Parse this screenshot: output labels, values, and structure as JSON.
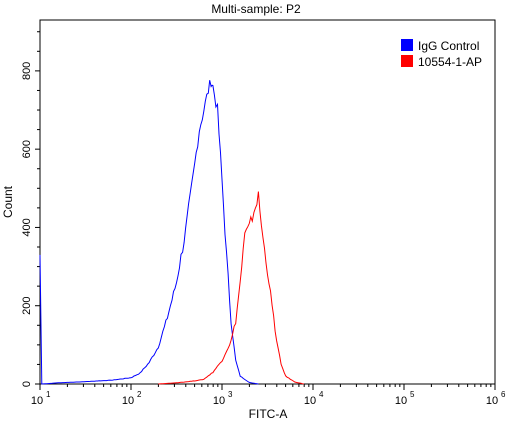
{
  "chart_data": {
    "type": "line",
    "title": "Multi-sample: P2",
    "xlabel": "FITC-A",
    "ylabel": "Count",
    "x_scale": "log",
    "xlim_exp": [
      1,
      6
    ],
    "ylim": [
      0,
      930
    ],
    "y_ticks": [
      0,
      200,
      400,
      600,
      800
    ],
    "x_tick_bases": [
      "10",
      "10",
      "10",
      "10",
      "10",
      "10"
    ],
    "x_tick_exps": [
      "1",
      "2",
      "3",
      "4",
      "5",
      "6"
    ],
    "legend_position": "top-right",
    "series": [
      {
        "name": "IgG Control",
        "color": "#0000ff",
        "points": [
          [
            1.0,
            330
          ],
          [
            1.02,
            0
          ],
          [
            1.2,
            3
          ],
          [
            1.5,
            6
          ],
          [
            1.8,
            10
          ],
          [
            2.0,
            16
          ],
          [
            2.1,
            28
          ],
          [
            2.2,
            55
          ],
          [
            2.3,
            95
          ],
          [
            2.4,
            170
          ],
          [
            2.5,
            260
          ],
          [
            2.6,
            390
          ],
          [
            2.7,
            560
          ],
          [
            2.75,
            650
          ],
          [
            2.8,
            700
          ],
          [
            2.85,
            750
          ],
          [
            2.88,
            775
          ],
          [
            2.9,
            760
          ],
          [
            2.95,
            700
          ],
          [
            3.0,
            520
          ],
          [
            3.05,
            330
          ],
          [
            3.1,
            160
          ],
          [
            3.15,
            60
          ],
          [
            3.2,
            20
          ],
          [
            3.3,
            4
          ],
          [
            3.4,
            0
          ]
        ]
      },
      {
        "name": "10554-1-AP",
        "color": "#ff0000",
        "points": [
          [
            2.3,
            0
          ],
          [
            2.5,
            3
          ],
          [
            2.7,
            8
          ],
          [
            2.8,
            12
          ],
          [
            2.9,
            30
          ],
          [
            3.0,
            60
          ],
          [
            3.1,
            110
          ],
          [
            3.15,
            160
          ],
          [
            3.2,
            260
          ],
          [
            3.25,
            380
          ],
          [
            3.3,
            400
          ],
          [
            3.35,
            440
          ],
          [
            3.4,
            480
          ],
          [
            3.45,
            370
          ],
          [
            3.5,
            290
          ],
          [
            3.55,
            200
          ],
          [
            3.6,
            110
          ],
          [
            3.65,
            50
          ],
          [
            3.7,
            20
          ],
          [
            3.8,
            5
          ],
          [
            3.9,
            0
          ]
        ]
      }
    ]
  }
}
